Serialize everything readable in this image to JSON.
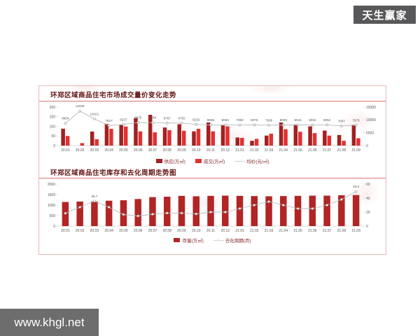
{
  "badge": {
    "text": "天生赢家"
  },
  "footer": {
    "url": "www.khgl.net"
  },
  "chart_data": [
    {
      "type": "bar",
      "title": "环郑区域商品住宅市场成交量价变化走势",
      "categories": [
        "20.01",
        "20.02",
        "20.03",
        "20.04",
        "20.05",
        "20.06",
        "20.07",
        "20.08",
        "20.09",
        "20.10",
        "20.11",
        "20.12",
        "21.01",
        "21.02",
        "21.03",
        "21.04",
        "21.05",
        "21.06",
        "21.07",
        "21.08",
        "21.09"
      ],
      "series": [
        {
          "name": "供应(万㎡)",
          "type": "bar",
          "color": "#a32020",
          "values": [
            88,
            0,
            73,
            113,
            107,
            143,
            160,
            94,
            111,
            74,
            120,
            105,
            42,
            25,
            52,
            120,
            110,
            100,
            78,
            55,
            108
          ]
        },
        {
          "name": "成交(万㎡)",
          "type": "bar",
          "color": "#e03131",
          "values": [
            50,
            13,
            33,
            87,
            99,
            74,
            69,
            80,
            77,
            87,
            74,
            100,
            40,
            35,
            62,
            85,
            72,
            65,
            52,
            25,
            38
          ]
        },
        {
          "name": "均价(元/㎡)",
          "type": "line",
          "color": "#b8b8b8",
          "axis": "right",
          "show_labels": true,
          "values": [
            8664,
            13448,
            10421,
            7817,
            8237,
            8975,
            8948,
            8767,
            8782,
            8232,
            8059,
            8063,
            7990,
            8075,
            7938,
            8009,
            8044,
            8052,
            8052,
            7667,
            7975
          ]
        }
      ],
      "left_axis": {
        "ticks": [
          0,
          50,
          100,
          150,
          200
        ],
        "max": 200
      },
      "right_axis": {
        "ticks": [
          0,
          5000,
          10000,
          15000
        ],
        "max": 15000
      },
      "legend_position": "bottom",
      "grid": false
    },
    {
      "type": "bar",
      "title": "环郑区域商品住宅库存和去化周期走势图",
      "categories": [
        "20.01",
        "20.02",
        "20.03",
        "20.04",
        "20.05",
        "20.06",
        "20.07",
        "20.08",
        "20.09",
        "20.10",
        "20.11",
        "20.12",
        "21.01",
        "21.02",
        "21.03",
        "21.04",
        "21.05",
        "21.06",
        "21.07",
        "21.08",
        "21.09"
      ],
      "series": [
        {
          "name": "存量(万㎡)",
          "type": "bar",
          "color": "#b22525",
          "values": [
            1150,
            1170,
            1180,
            1210,
            1230,
            1290,
            1380,
            1400,
            1440,
            1420,
            1440,
            1450,
            1440,
            1430,
            1420,
            1430,
            1440,
            1450,
            1450,
            1470,
            1480
          ]
        },
        {
          "name": "去化周期(月)",
          "type": "line",
          "color": "#b8b8b8",
          "axis": "right",
          "values": [
            18.3,
            27,
            35.7,
            27,
            16.5,
            14.5,
            17,
            18.6,
            18.6,
            17.4,
            20,
            20,
            25,
            30,
            35,
            30,
            25,
            25,
            30,
            38,
            49.3
          ],
          "point_labels": {
            "2": "35.7",
            "20": "49.3"
          }
        }
      ],
      "left_axis": {
        "ticks": [
          0,
          500,
          1000,
          1500,
          2000
        ],
        "max": 2000
      },
      "right_axis": {
        "ticks": [
          0,
          20,
          40,
          60
        ],
        "max": 60
      },
      "legend_position": "bottom",
      "grid": false
    }
  ]
}
